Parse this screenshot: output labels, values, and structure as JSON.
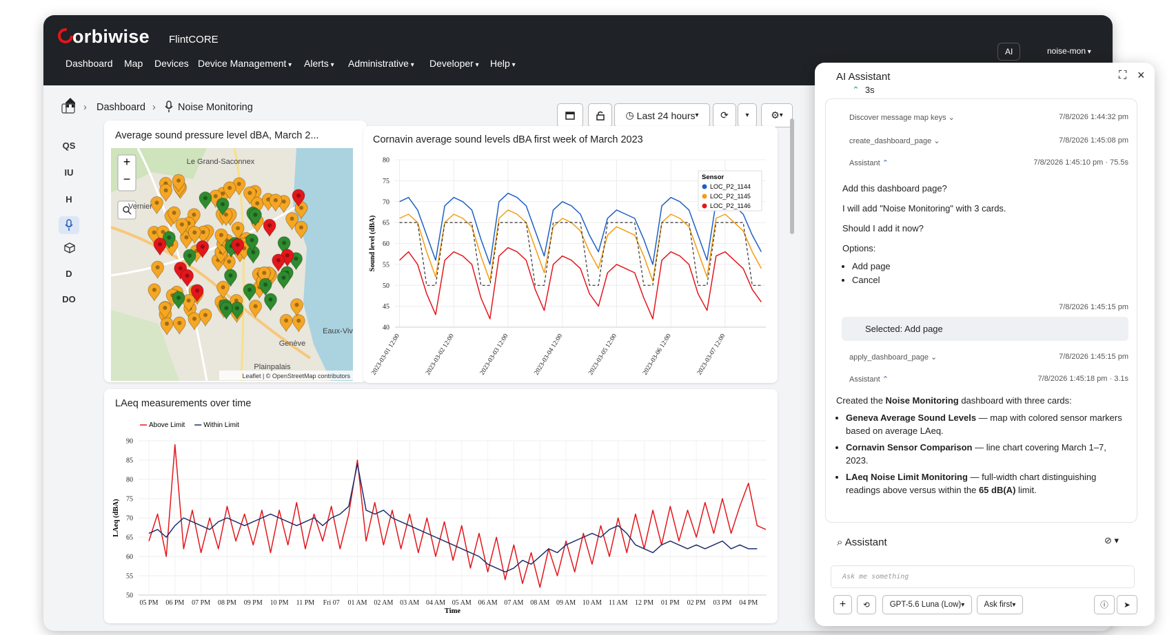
{
  "header": {
    "brand": "orbiwise",
    "product": "FlintCORE",
    "nav": [
      "Dashboard",
      "Map",
      "Devices",
      "Device Management",
      "Alerts",
      "Administrative",
      "Developer",
      "Help"
    ],
    "ai": "AI",
    "user": "noise-mon"
  },
  "breadcrumb": [
    "Dashboard",
    "Noise Monitoring"
  ],
  "toolbar": {
    "range": "Last 24 hours"
  },
  "sidebar": [
    "QS",
    "IU",
    "H",
    "D",
    "DO"
  ],
  "map": {
    "title": "Average sound pressure level dBA, March 2...",
    "places": [
      "Le Grand-Saconnex",
      "Vernier",
      "Genève",
      "Plainpalais",
      "Eaux-Viv"
    ],
    "attribution": "Leaflet | © OpenStreetMap contributors"
  },
  "chart_data": [
    {
      "type": "line",
      "title": "Cornavin average sound levels dBA first week of March 2023",
      "ylabel": "Sound level (dBA)",
      "ylim": [
        40,
        80
      ],
      "yticks": [
        40,
        45,
        50,
        55,
        60,
        65,
        70,
        75,
        80
      ],
      "grid": true,
      "xlim": [
        "2023-03-01 10:00",
        "2023-03-08 06:00"
      ],
      "xticks": [
        "2023-03-01 12:00",
        "2023-03-02 12:00",
        "2023-03-03 12:00",
        "2023-03-04 12:00",
        "2023-03-05 12:00",
        "2023-03-06 12:00",
        "2023-03-07 12:00"
      ],
      "x": [
        "2023-03-01 12:00",
        "2023-03-01 16:00",
        "2023-03-01 20:00",
        "2023-03-02 00:00",
        "2023-03-02 04:00",
        "2023-03-02 08:00",
        "2023-03-02 12:00",
        "2023-03-02 16:00",
        "2023-03-02 20:00",
        "2023-03-03 00:00",
        "2023-03-03 04:00",
        "2023-03-03 08:00",
        "2023-03-03 12:00",
        "2023-03-03 16:00",
        "2023-03-03 20:00",
        "2023-03-04 00:00",
        "2023-03-04 04:00",
        "2023-03-04 08:00",
        "2023-03-04 12:00",
        "2023-03-04 16:00",
        "2023-03-04 20:00",
        "2023-03-05 00:00",
        "2023-03-05 04:00",
        "2023-03-05 08:00",
        "2023-03-05 12:00",
        "2023-03-05 16:00",
        "2023-03-05 20:00",
        "2023-03-06 00:00",
        "2023-03-06 04:00",
        "2023-03-06 08:00",
        "2023-03-06 12:00",
        "2023-03-06 16:00",
        "2023-03-06 20:00",
        "2023-03-07 00:00",
        "2023-03-07 04:00",
        "2023-03-07 08:00",
        "2023-03-07 12:00",
        "2023-03-07 16:00",
        "2023-03-07 20:00",
        "2023-03-08 00:00",
        "2023-03-08 04:00"
      ],
      "legend_title": "Sensor",
      "legend": "upper right",
      "series": [
        {
          "name": "LOC_P2_1144",
          "color": "#1f5fc4",
          "values": [
            70,
            71,
            68,
            62,
            56,
            69,
            71,
            70,
            68,
            61,
            55,
            70,
            72,
            71,
            69,
            63,
            57,
            68,
            70,
            69,
            67,
            62,
            58,
            66,
            68,
            67,
            66,
            61,
            55,
            69,
            71,
            70,
            68,
            62,
            56,
            70,
            71,
            69,
            67,
            62,
            58
          ]
        },
        {
          "name": "LOC_P2_1145",
          "color": "#f39c12",
          "values": [
            66,
            67,
            65,
            58,
            52,
            65,
            67,
            66,
            64,
            57,
            51,
            66,
            68,
            67,
            65,
            59,
            53,
            64,
            66,
            65,
            63,
            58,
            54,
            62,
            64,
            63,
            62,
            57,
            51,
            65,
            67,
            66,
            64,
            58,
            52,
            66,
            67,
            65,
            63,
            58,
            54
          ]
        },
        {
          "name": "LOC_P2_1146",
          "color": "#e3161b",
          "values": [
            56,
            58,
            55,
            48,
            43,
            56,
            58,
            57,
            55,
            47,
            42,
            57,
            59,
            58,
            56,
            49,
            44,
            55,
            57,
            56,
            54,
            48,
            45,
            53,
            55,
            54,
            53,
            47,
            42,
            56,
            58,
            57,
            55,
            48,
            44,
            57,
            58,
            56,
            54,
            49,
            46
          ]
        },
        {
          "color": "#333333",
          "dash": true,
          "values": [
            65,
            65,
            65,
            50,
            50,
            65,
            65,
            65,
            65,
            50,
            50,
            65,
            65,
            65,
            65,
            50,
            50,
            65,
            65,
            65,
            65,
            50,
            50,
            65,
            65,
            65,
            65,
            50,
            50,
            65,
            65,
            65,
            65,
            50,
            50,
            65,
            65,
            65,
            65,
            50,
            50
          ]
        }
      ]
    },
    {
      "type": "line",
      "title": "LAeq measurements over time",
      "ylabel": "LAeq (dBA)",
      "xlabel": "Time",
      "ylim": [
        50,
        90
      ],
      "yticks": [
        50,
        55,
        60,
        65,
        70,
        75,
        80,
        85,
        90
      ],
      "grid": true,
      "legend": "top left",
      "categories": [
        "05 PM",
        null,
        null,
        "06 PM",
        null,
        null,
        "07 PM",
        null,
        null,
        "08 PM",
        null,
        null,
        "09 PM",
        null,
        null,
        "10 PM",
        null,
        null,
        "11 PM",
        null,
        null,
        "Fri 07",
        null,
        null,
        "01 AM",
        null,
        null,
        "02 AM",
        null,
        null,
        "03 AM",
        null,
        null,
        "04 AM",
        null,
        null,
        "05 AM",
        null,
        null,
        "06 AM",
        null,
        null,
        "07 AM",
        null,
        null,
        "08 AM",
        null,
        null,
        "09 AM",
        null,
        null,
        "10 AM",
        null,
        null,
        "11 AM",
        null,
        null,
        "12 PM",
        null,
        null,
        "01 PM",
        null,
        null,
        "02 PM",
        null,
        null,
        "03 PM",
        null,
        null,
        "04 PM",
        null,
        null
      ],
      "series": [
        {
          "name": "Above Limit",
          "color": "#e3161b",
          "values": [
            64,
            71,
            60,
            89,
            62,
            72,
            61,
            70,
            62,
            73,
            64,
            71,
            63,
            72,
            61,
            72,
            63,
            74,
            62,
            71,
            64,
            73,
            62,
            71,
            85,
            64,
            74,
            63,
            72,
            62,
            71,
            61,
            70,
            60,
            69,
            59,
            68,
            57,
            66,
            56,
            65,
            54,
            63,
            53,
            61,
            52,
            62,
            55,
            64,
            56,
            66,
            58,
            68,
            60,
            70,
            61,
            71,
            62,
            72,
            63,
            73,
            64,
            72,
            65,
            74,
            66,
            75,
            66,
            73,
            79,
            68,
            67
          ]
        },
        {
          "name": "Within Limit",
          "color": "#1c2f6b",
          "values": [
            66,
            67,
            65,
            68,
            70,
            69,
            68,
            67,
            69,
            70,
            69,
            68,
            69,
            70,
            71,
            70,
            69,
            68,
            69,
            70,
            68,
            70,
            71,
            73,
            84,
            72,
            71,
            72,
            70,
            69,
            68,
            67,
            66,
            65,
            64,
            63,
            62,
            61,
            60,
            58,
            57,
            56,
            57,
            59,
            58,
            60,
            62,
            61,
            63,
            64,
            65,
            66,
            65,
            67,
            68,
            66,
            63,
            62,
            61,
            63,
            64,
            63,
            62,
            63,
            62,
            63,
            64,
            62,
            63,
            62,
            62,
            null
          ]
        }
      ]
    }
  ],
  "assistant": {
    "title": "AI Assistant",
    "status": "3s",
    "tool_calls": [
      {
        "name": "Discover message map keys",
        "time": "7/8/2026 1:44:32 pm"
      },
      {
        "name": "create_dashboard_page",
        "time": "7/8/2026 1:45:08 pm"
      },
      {
        "name": "apply_dashboard_page",
        "time": "7/8/2026 1:45:15 pm"
      }
    ],
    "replies": [
      {
        "label": "Assistant",
        "time": "7/8/2026 1:45:10 pm · 75.5s",
        "lines": [
          "Add this dashboard page?",
          "I will add \"Noise Monitoring\" with 3 cards.",
          "Should I add it now?",
          "Options:"
        ],
        "bullets": [
          "Add page",
          "Cancel"
        ],
        "footer_time": "7/8/2026 1:45:15 pm"
      },
      {
        "label": "Assistant",
        "time": "7/8/2026 1:45:18 pm · 3.1s",
        "intro": [
          "Created the ",
          "Noise Monitoring",
          " dashboard with three cards:"
        ],
        "bullets": [
          [
            "Geneva Average Sound Levels",
            " — map with colored sensor markers based on average LAeq."
          ],
          [
            "Cornavin Sensor Comparison",
            " — line chart covering March 1–7, 2023."
          ],
          [
            "LAeq Noise Limit Monitoring",
            " — full-width chart distinguishing readings above versus within the ",
            "65 dB(A)",
            " limit."
          ]
        ]
      }
    ],
    "selection": "Selected: Add page",
    "composer": {
      "heading": "Assistant",
      "placeholder": "Ask me something",
      "model": "GPT-5.6 Luna (Low)",
      "mode": "Ask first"
    }
  }
}
